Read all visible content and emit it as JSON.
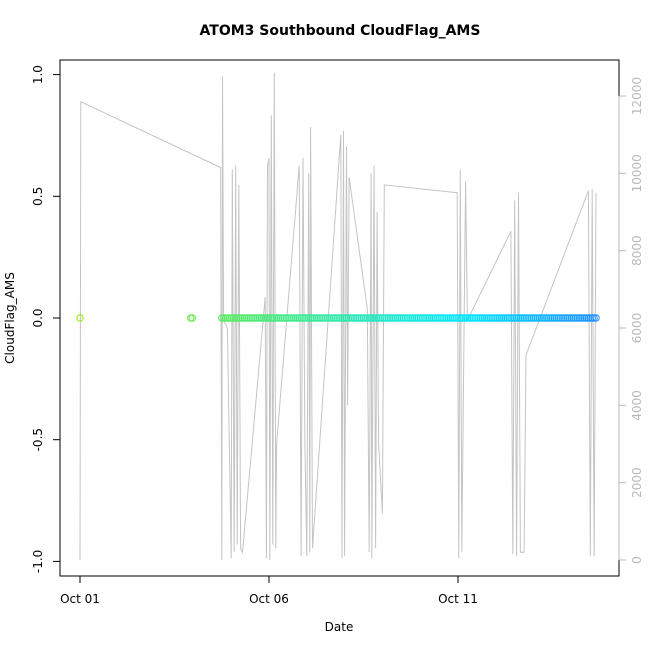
{
  "chart_data": {
    "type": "scatter",
    "title": "ATOM3 Southbound CloudFlag_AMS",
    "xlabel": "Date",
    "ylabel": "CloudFlag_AMS",
    "x_ticks": [
      "Oct 01",
      "Oct 06",
      "Oct 11"
    ],
    "x_range_days": [
      0.0,
      13.9
    ],
    "y_ticks": [
      "-1.0",
      "-0.5",
      "0.0",
      "0.5",
      "1.0"
    ],
    "ylim": [
      -1.06,
      1.06
    ],
    "y2_ticks": [
      "0",
      "2000",
      "4000",
      "6000",
      "8000",
      "10000",
      "12000"
    ],
    "y2lim": [
      -300,
      12150
    ],
    "grid": false,
    "series": [
      {
        "marker": "open-circle",
        "y_value": 0.0,
        "points_x_days": [
          0.0,
          2.93,
          2.97,
          3.75,
          3.8,
          3.85,
          3.9,
          3.95,
          4.0,
          4.05,
          4.1,
          4.15,
          4.2,
          4.25,
          4.3,
          4.35,
          4.4,
          4.45,
          4.5,
          4.55,
          4.6,
          4.65,
          4.7,
          4.75,
          4.8,
          4.85,
          4.9,
          4.95,
          5.0,
          5.05,
          5.1,
          5.15,
          5.2,
          5.25,
          5.3,
          5.35,
          5.4,
          5.45,
          5.5,
          5.55,
          5.6,
          5.65,
          5.7,
          5.75,
          5.8,
          5.85,
          5.9,
          5.95,
          6.0,
          6.05,
          6.1,
          6.15,
          6.2,
          6.25,
          6.3,
          6.35,
          6.4,
          6.45,
          6.5,
          6.55,
          6.6,
          6.65,
          6.7,
          6.75,
          6.8,
          6.85,
          6.9,
          6.95,
          7.0,
          7.05,
          7.1,
          7.15,
          7.2,
          7.25,
          7.3,
          7.35,
          7.4,
          7.45,
          7.5,
          7.55,
          7.6,
          7.65,
          7.7,
          7.75,
          7.8,
          7.85,
          7.9,
          7.95,
          8.0,
          8.05,
          8.1,
          8.15,
          8.2,
          8.25,
          8.3,
          8.35,
          8.4,
          8.45,
          8.5,
          8.55,
          8.6,
          8.65,
          8.7,
          8.75,
          8.8,
          8.85,
          8.9,
          8.95,
          9.0,
          9.05,
          9.1,
          9.15,
          9.2,
          9.25,
          9.3,
          9.35,
          9.4,
          9.45,
          9.5,
          9.55,
          9.6,
          9.65,
          9.7,
          9.75,
          9.8,
          9.85,
          9.9,
          9.95,
          10.0,
          10.05,
          10.1,
          10.15,
          10.2,
          10.25,
          10.3,
          10.35,
          10.4,
          10.45,
          10.5,
          10.55,
          10.6,
          10.65,
          10.7,
          10.75,
          10.8,
          10.85,
          10.9,
          10.95,
          11.0,
          11.05,
          11.1,
          11.15,
          11.2,
          11.25,
          11.3,
          11.35,
          11.4,
          11.45,
          11.5,
          11.55,
          11.6,
          11.65,
          11.7,
          11.75,
          11.8,
          11.85,
          11.9,
          11.95,
          12.0,
          12.05,
          12.1,
          12.15,
          12.2,
          12.25,
          12.3,
          12.35,
          12.4,
          12.45,
          12.5,
          12.55,
          12.6,
          12.65,
          12.7,
          12.75,
          12.8,
          12.85,
          12.9,
          12.95,
          13.0,
          13.05,
          13.1,
          13.15,
          13.2,
          13.25,
          13.3,
          13.35,
          13.4,
          13.45,
          13.5,
          13.55,
          13.6,
          13.65
        ],
        "color_gradient": [
          "#8ff000",
          "#00e5ff",
          "#1e90ff"
        ]
      },
      {
        "marker": "line",
        "axis": "right",
        "color": "#c4c4c4",
        "points": [
          [
            0.0,
            0
          ],
          [
            0.02,
            11850
          ],
          [
            3.72,
            10150
          ],
          [
            3.75,
            0
          ],
          [
            3.77,
            12500
          ],
          [
            3.8,
            6200
          ],
          [
            3.9,
            6000
          ],
          [
            4.0,
            50
          ],
          [
            4.03,
            10100
          ],
          [
            4.08,
            200
          ],
          [
            4.12,
            10200
          ],
          [
            4.16,
            400
          ],
          [
            4.2,
            9700
          ],
          [
            4.25,
            300
          ],
          [
            4.3,
            200
          ],
          [
            4.9,
            6800
          ],
          [
            4.93,
            50
          ],
          [
            4.96,
            10200
          ],
          [
            5.0,
            10400
          ],
          [
            5.02,
            0
          ],
          [
            5.06,
            11500
          ],
          [
            5.1,
            400
          ],
          [
            5.14,
            12600
          ],
          [
            5.18,
            300
          ],
          [
            5.2,
            3000
          ],
          [
            5.8,
            10200
          ],
          [
            5.85,
            100
          ],
          [
            5.9,
            10400
          ],
          [
            5.95,
            3000
          ],
          [
            6.0,
            100
          ],
          [
            6.05,
            10000
          ],
          [
            6.08,
            200
          ],
          [
            6.1,
            11200
          ],
          [
            6.15,
            300
          ],
          [
            6.9,
            11000
          ],
          [
            6.93,
            50
          ],
          [
            6.97,
            11100
          ],
          [
            7.0,
            100
          ],
          [
            7.05,
            10700
          ],
          [
            7.08,
            4000
          ],
          [
            7.12,
            9900
          ],
          [
            7.6,
            6500
          ],
          [
            7.65,
            200
          ],
          [
            7.7,
            10000
          ],
          [
            7.72,
            50
          ],
          [
            7.78,
            10200
          ],
          [
            7.82,
            300
          ],
          [
            7.86,
            9000
          ],
          [
            7.9,
            3000
          ],
          [
            8.0,
            1200
          ],
          [
            8.05,
            9700
          ],
          [
            9.98,
            9500
          ],
          [
            10.02,
            50
          ],
          [
            10.06,
            10100
          ],
          [
            10.1,
            200
          ],
          [
            10.15,
            5100
          ],
          [
            10.2,
            9800
          ],
          [
            10.25,
            6200
          ],
          [
            11.4,
            8500
          ],
          [
            11.45,
            150
          ],
          [
            11.5,
            9300
          ],
          [
            11.55,
            100
          ],
          [
            11.6,
            9500
          ],
          [
            11.65,
            200
          ],
          [
            11.75,
            200
          ],
          [
            11.8,
            5300
          ],
          [
            13.45,
            9550
          ],
          [
            13.5,
            100
          ],
          [
            13.55,
            9600
          ],
          [
            13.6,
            100
          ],
          [
            13.65,
            9500
          ]
        ]
      }
    ]
  }
}
